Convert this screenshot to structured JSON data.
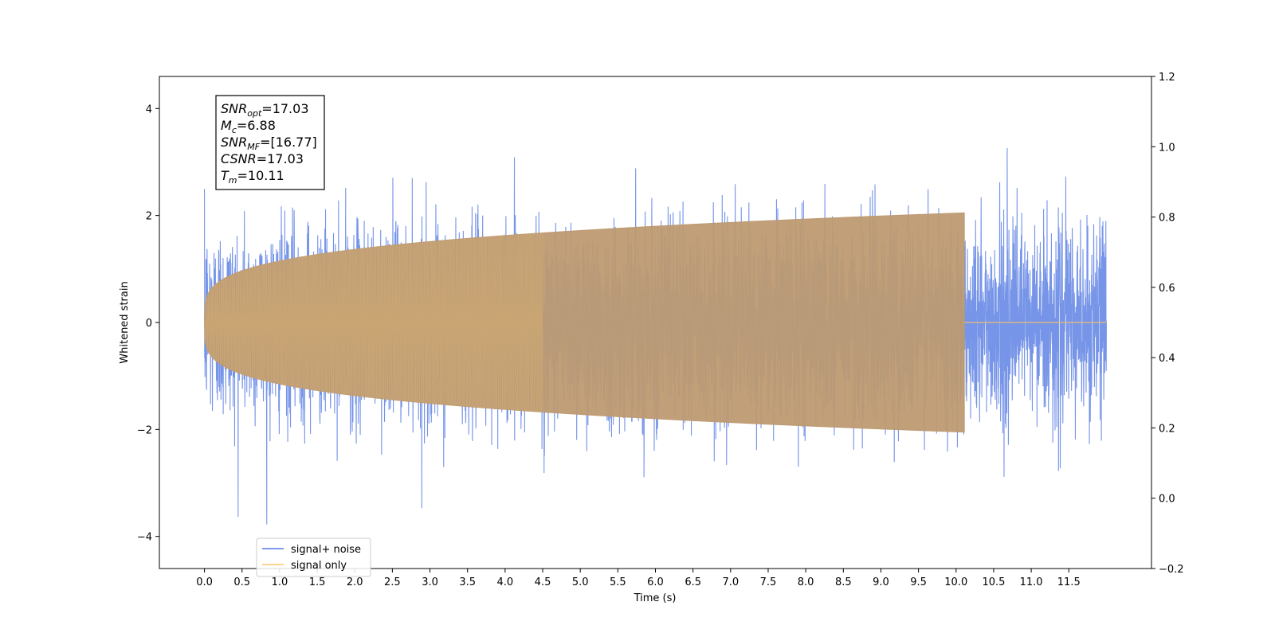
{
  "chart_data": {
    "type": "line",
    "xlabel": "Time (s)",
    "ylabel": "Whitened strain",
    "xlim": [
      -0.6,
      12.6
    ],
    "ylim": [
      -4.6,
      4.6
    ],
    "y2lim": [
      -0.2,
      1.2
    ],
    "x_ticks": [
      0.0,
      0.5,
      1.0,
      1.5,
      2.0,
      2.5,
      3.0,
      3.5,
      4.0,
      4.5,
      5.0,
      5.5,
      6.0,
      6.5,
      7.0,
      7.5,
      8.0,
      8.5,
      9.0,
      9.5,
      10.0,
      10.5,
      11.0,
      11.5
    ],
    "x_tick_labels": [
      "0.0",
      "0.5",
      "1.0",
      "1.5",
      "2.0",
      "2.5",
      "3.0",
      "3.5",
      "4.0",
      "4.5",
      "5.0",
      "5.5",
      "6.0",
      "6.5",
      "7.0",
      "7.5",
      "8.0",
      "8.5",
      "9.0",
      "9.5",
      "10.0",
      "10.5",
      "11.0",
      "11.5"
    ],
    "y_ticks": [
      -4,
      -2,
      0,
      2,
      4
    ],
    "y_tick_labels": [
      "−4",
      "−2",
      "0",
      "2",
      "4"
    ],
    "y2_ticks": [
      -0.2,
      0.0,
      0.2,
      0.4,
      0.6,
      0.8,
      1.0,
      1.2
    ],
    "y2_tick_labels": [
      "−0.2",
      "0.0",
      "0.2",
      "0.4",
      "0.6",
      "0.8",
      "1.0",
      "1.2"
    ],
    "grid": false,
    "legend": {
      "placement": "lower-left",
      "entries": [
        {
          "label": "signal+ noise",
          "color": "#6a8be6"
        },
        {
          "label": "signal only",
          "color": "#ffcc80"
        }
      ]
    },
    "series": [
      {
        "name": "signal+ noise",
        "color": "#6a8be6",
        "x_range": [
          0.0,
          12.0
        ],
        "noise_std": 0.9,
        "y_min": -4.15,
        "y_max": 4.2
      },
      {
        "name": "signal only",
        "color": "#ffcc80",
        "x_range": [
          0.0,
          12.0
        ],
        "merger_time": 10.11,
        "initial_amplitude": 0.05,
        "peak_amplitude": 2.05,
        "post_merger_value": 0.0
      }
    ],
    "annotation": {
      "lines": [
        {
          "sym": "SNR",
          "sub": "opt",
          "value": "=17.03"
        },
        {
          "sym": "M",
          "sub": "c",
          "value": "=6.88"
        },
        {
          "sym": "SNR",
          "sub": "MF",
          "value": "=[16.77]"
        },
        {
          "sym": "CSNR",
          "sub": "",
          "value": "=17.03"
        },
        {
          "sym": "T",
          "sub": "m",
          "value": "=10.11"
        }
      ]
    }
  }
}
